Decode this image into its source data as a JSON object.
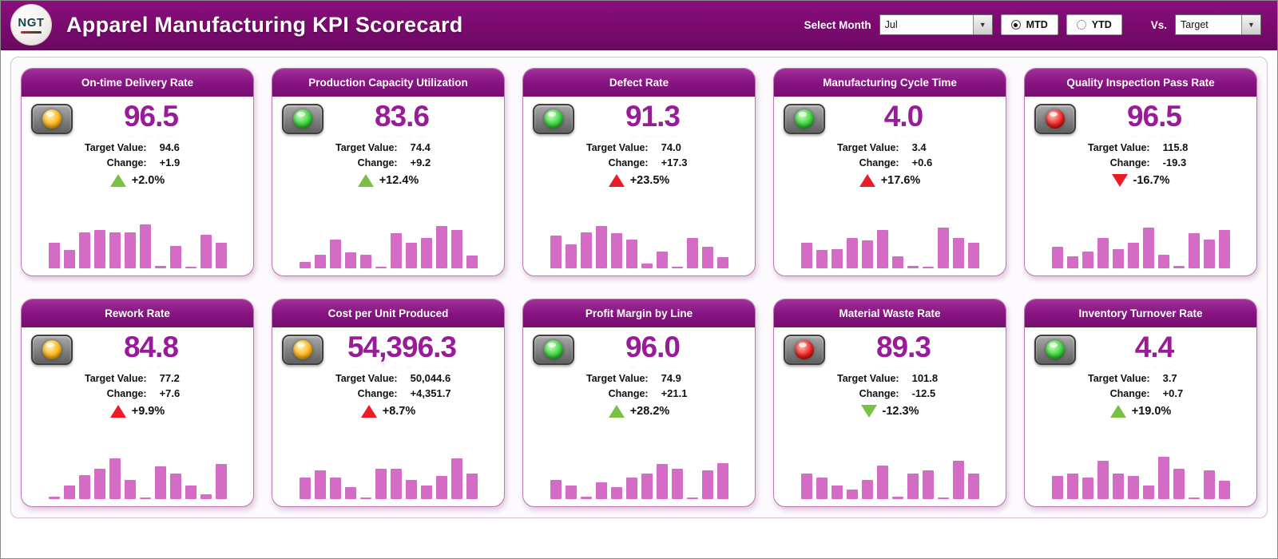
{
  "header": {
    "logo_text": "NGT",
    "title": "Apparel Manufacturing KPI Scorecard",
    "select_month_label": "Select Month",
    "month_value": "Jul",
    "mtd_label": "MTD",
    "ytd_label": "YTD",
    "vs_label": "Vs.",
    "vs_value": "Target"
  },
  "labels": {
    "target": "Target Value:",
    "change": "Change:"
  },
  "colors": {
    "header_bg": "#7a0a6e",
    "card_header": "#851280",
    "value_text": "#9a1b9a",
    "bar": "#d46cc6",
    "green": "#7ac143",
    "red": "#ec1c24",
    "yellow": "#ffb71b"
  },
  "cards": [
    {
      "title": "On-time Delivery Rate",
      "light": "yellow",
      "value": "96.5",
      "target": "94.6",
      "change": "+1.9",
      "pct": "+2.0%",
      "arrow": "up",
      "arrow_color": "green",
      "spark": [
        55,
        40,
        78,
        82,
        78,
        78,
        95,
        6,
        48,
        2,
        72,
        55
      ]
    },
    {
      "title": "Production Capacity Utilization",
      "light": "green",
      "value": "83.6",
      "target": "74.4",
      "change": "+9.2",
      "pct": "+12.4%",
      "arrow": "up",
      "arrow_color": "green",
      "spark": [
        14,
        30,
        62,
        34,
        30,
        4,
        75,
        55,
        66,
        92,
        82,
        28
      ]
    },
    {
      "title": "Defect Rate",
      "light": "green",
      "value": "91.3",
      "target": "74.0",
      "change": "+17.3",
      "pct": "+23.5%",
      "arrow": "up",
      "arrow_color": "red",
      "spark": [
        70,
        52,
        78,
        92,
        76,
        62,
        10,
        36,
        2,
        66,
        46,
        24
      ]
    },
    {
      "title": "Manufacturing Cycle Time",
      "light": "green",
      "value": "4.0",
      "target": "3.4",
      "change": "+0.6",
      "pct": "+17.6%",
      "arrow": "up",
      "arrow_color": "red",
      "spark": [
        56,
        40,
        42,
        66,
        60,
        82,
        26,
        6,
        2,
        88,
        66,
        56
      ]
    },
    {
      "title": "Quality Inspection Pass Rate",
      "light": "red",
      "value": "96.5",
      "target": "115.8",
      "change": "-19.3",
      "pct": "-16.7%",
      "arrow": "down",
      "arrow_color": "red",
      "spark": [
        46,
        26,
        36,
        66,
        42,
        56,
        88,
        30,
        6,
        76,
        62,
        82
      ]
    },
    {
      "title": "Rework Rate",
      "light": "yellow",
      "value": "84.8",
      "target": "77.2",
      "change": "+7.6",
      "pct": "+9.9%",
      "arrow": "up",
      "arrow_color": "red",
      "spark": [
        6,
        30,
        52,
        66,
        88,
        42,
        4,
        70,
        56,
        30,
        10,
        76
      ]
    },
    {
      "title": "Cost per Unit Produced",
      "light": "yellow",
      "value": "54,396.3",
      "target": "50,044.6",
      "change": "+4,351.7",
      "pct": "+8.7%",
      "arrow": "up",
      "arrow_color": "red",
      "spark": [
        46,
        62,
        46,
        26,
        4,
        66,
        66,
        42,
        30,
        50,
        88,
        56
      ]
    },
    {
      "title": "Profit Margin by Line",
      "light": "green",
      "value": "96.0",
      "target": "74.9",
      "change": "+21.1",
      "pct": "+28.2%",
      "arrow": "up",
      "arrow_color": "green",
      "spark": [
        42,
        30,
        6,
        36,
        26,
        46,
        56,
        76,
        66,
        4,
        62,
        78
      ]
    },
    {
      "title": "Material Waste Rate",
      "light": "red",
      "value": "89.3",
      "target": "101.8",
      "change": "-12.5",
      "pct": "-12.3%",
      "arrow": "down",
      "arrow_color": "green",
      "spark": [
        56,
        46,
        30,
        20,
        42,
        72,
        6,
        56,
        62,
        4,
        82,
        56
      ]
    },
    {
      "title": "Inventory Turnover Rate",
      "light": "green",
      "value": "4.4",
      "target": "3.7",
      "change": "+0.7",
      "pct": "+19.0%",
      "arrow": "up",
      "arrow_color": "green",
      "spark": [
        50,
        56,
        46,
        82,
        56,
        50,
        30,
        92,
        66,
        4,
        62,
        40
      ]
    }
  ]
}
